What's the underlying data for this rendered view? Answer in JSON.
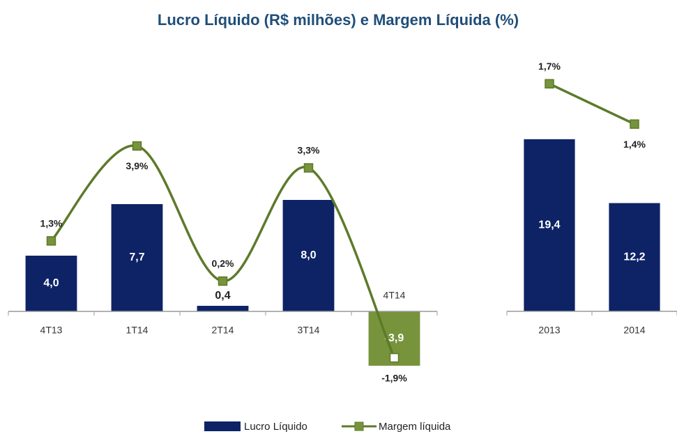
{
  "chart_data": [
    {
      "type": "bar-line",
      "title": "Lucro Líquido (R$ milhões) e Margem Líquida (%)",
      "categories": [
        "4T13",
        "1T14",
        "2T14",
        "3T14",
        "4T14"
      ],
      "smooth": true,
      "ylim": [
        -7,
        20
      ],
      "y2lim": [
        -3.3,
        7
      ],
      "series": [
        {
          "name": "Lucro Líquido",
          "color": "#0d2366",
          "colors": [
            "#0d2366",
            "#0d2366",
            "#0d2366",
            "#0d2366",
            "#77933c"
          ],
          "values": [
            4.0,
            7.7,
            0.4,
            8.0,
            -3.9
          ],
          "value_labels": [
            "4,0",
            "7,7",
            "0,4",
            "8,0",
            "-3,9"
          ]
        },
        {
          "name": "Margem líquida",
          "color": "#5d7a2a",
          "axis": "y2",
          "values": [
            1.3,
            3.9,
            0.2,
            3.3,
            -1.9
          ],
          "value_labels": [
            "1,3%",
            "3,9%",
            "0,2%",
            "3,3%",
            "-1,9%"
          ]
        }
      ]
    },
    {
      "type": "bar-line",
      "categories": [
        "2013",
        "2014"
      ],
      "smooth": false,
      "ylim": [
        -11,
        31.4
      ],
      "y2lim": [
        -0.72,
        2.08
      ],
      "series": [
        {
          "name": "Lucro Líquido",
          "color": "#0d2366",
          "values": [
            19.4,
            12.2
          ],
          "value_labels": [
            "19,4",
            "12,2"
          ]
        },
        {
          "name": "Margem líquida",
          "color": "#5d7a2a",
          "axis": "y2",
          "values": [
            1.7,
            1.4
          ],
          "value_labels": [
            "1,7%",
            "1,4%"
          ]
        }
      ]
    }
  ]
}
